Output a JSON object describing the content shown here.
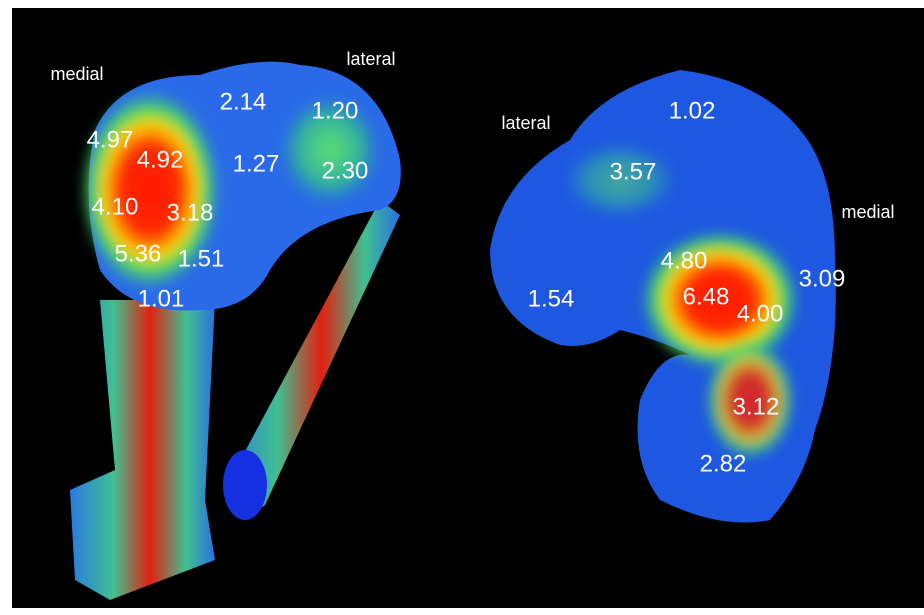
{
  "left_view": {
    "labels": [
      "medial",
      "lateral"
    ],
    "values": [
      "2.14",
      "1.20",
      "4.97",
      "4.92",
      "1.27",
      "2.30",
      "4.10",
      "3.18",
      "5.36",
      "1.51",
      "1.01"
    ]
  },
  "right_view": {
    "labels": [
      "lateral",
      "medial"
    ],
    "values": [
      "1.02",
      "3.57",
      "4.80",
      "3.09",
      "6.48",
      "1.54",
      "4.00",
      "3.12",
      "2.82"
    ]
  }
}
